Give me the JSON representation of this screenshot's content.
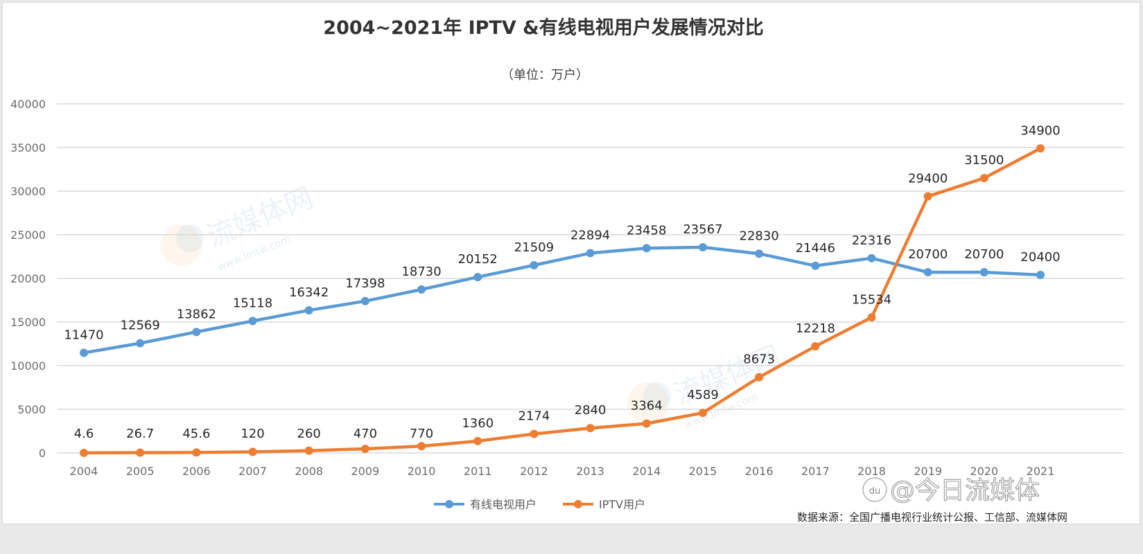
{
  "chart_data": {
    "type": "line",
    "title": "2004~2021年 IPTV &有线电视用户发展情况对比",
    "subtitle": "（单位：万户）",
    "xlabel": "",
    "ylabel": "",
    "ylim": [
      0,
      40000
    ],
    "yticks": [
      0,
      5000,
      10000,
      15000,
      20000,
      25000,
      30000,
      35000,
      40000
    ],
    "ytick_labels": [
      "0",
      "5000",
      "10000",
      "15000",
      "20000",
      "25000",
      "30000",
      "35000",
      "40000"
    ],
    "grid": true,
    "legend_position": "bottom",
    "categories": [
      "2004",
      "2005",
      "2006",
      "2007",
      "2008",
      "2009",
      "2010",
      "2011",
      "2012",
      "2013",
      "2014",
      "2015",
      "2016",
      "2017",
      "2018",
      "2019",
      "2020",
      "2021"
    ],
    "series": [
      {
        "name": "有线电视用户",
        "color": "#5b9bd5",
        "values": [
          11470,
          12569,
          13862,
          15118,
          16342,
          17398,
          18730,
          20152,
          21509,
          22894,
          23458,
          23567,
          22830,
          21446,
          22316,
          20700,
          20700,
          20400
        ],
        "labels": [
          "11470",
          "12569",
          "13862",
          "15118",
          "16342",
          "17398",
          "18730",
          "20152",
          "21509",
          "22894",
          "23458",
          "23567",
          "22830",
          "21446",
          "22316",
          "20700",
          "20700",
          "20400"
        ]
      },
      {
        "name": "IPTV用户",
        "color": "#ed7d31",
        "values": [
          4.6,
          26.7,
          45.6,
          120,
          260,
          470,
          770,
          1360,
          2174,
          2840,
          3364,
          4589,
          8673,
          12218,
          15534,
          29400,
          31500,
          34900
        ],
        "labels": [
          "4.6",
          "26.7",
          "45.6",
          "120",
          "260",
          "470",
          "770",
          "1360",
          "2174",
          "2840",
          "3364",
          "4589",
          "8673",
          "12218",
          "15534",
          "29400",
          "31500",
          "34900"
        ]
      }
    ],
    "source_note": "数据来源：全国广播电视行业统计公报、工信部、流媒体网"
  },
  "watermarks": {
    "site_name": "流媒体网",
    "site_url": "www.lmtw.com",
    "platform_handle": "@今日流媒体",
    "platform_logo": "du"
  }
}
